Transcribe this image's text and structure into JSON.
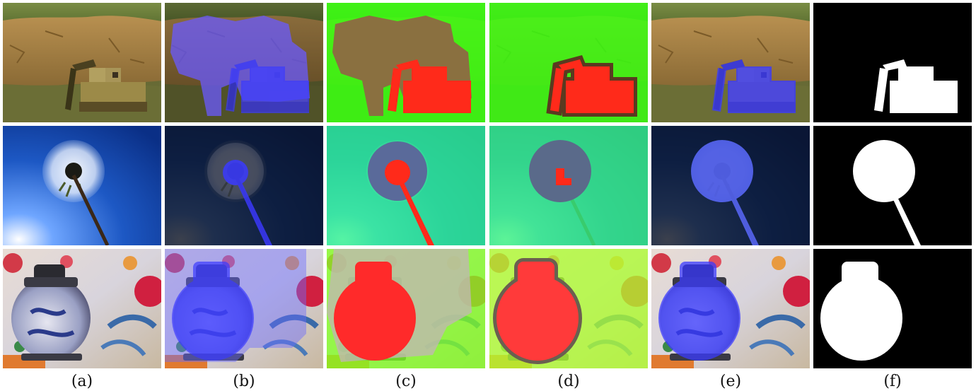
{
  "figure": {
    "column_labels": [
      "(a)",
      "(b)",
      "(c)",
      "(d)",
      "(e)",
      "(f)"
    ]
  }
}
